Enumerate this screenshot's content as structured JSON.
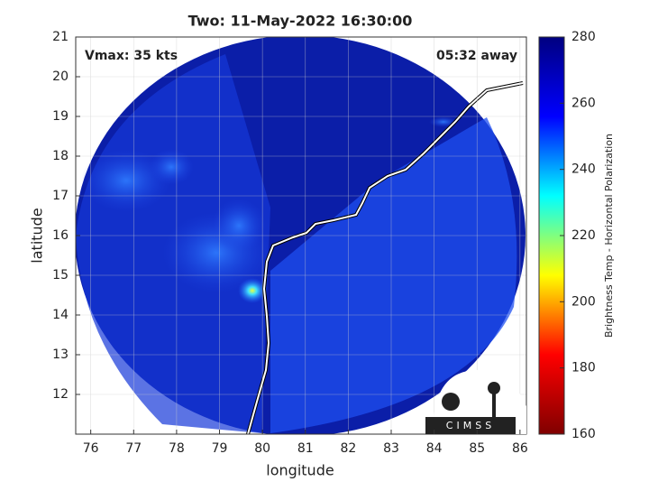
{
  "chart_data": {
    "type": "map",
    "title": "Two: 11-May-2022 16:30:00",
    "annotations": [
      "Vmax: 35 kts",
      "05:32 away"
    ],
    "x_label": "longitude",
    "y_label": "latitude",
    "xlim": [
      75.65,
      86.15
    ],
    "xticks": [
      76,
      77,
      78,
      79,
      80,
      81,
      82,
      83,
      84,
      85,
      86
    ],
    "ylim": [
      11,
      21
    ],
    "yticks": [
      12,
      13,
      14,
      15,
      16,
      17,
      18,
      19,
      20,
      21
    ],
    "grid": true,
    "colorbar": {
      "label": "Brightness Temp - Horizontal Polarization",
      "clim": [
        160,
        280
      ],
      "ticks": [
        160,
        180,
        200,
        220,
        240,
        260,
        280
      ],
      "colors": [
        "#800000",
        "#ff0000",
        "#ffff00",
        "#00ffff",
        "#0000ff",
        "#000080"
      ]
    },
    "logo_text": "CIMSS"
  }
}
